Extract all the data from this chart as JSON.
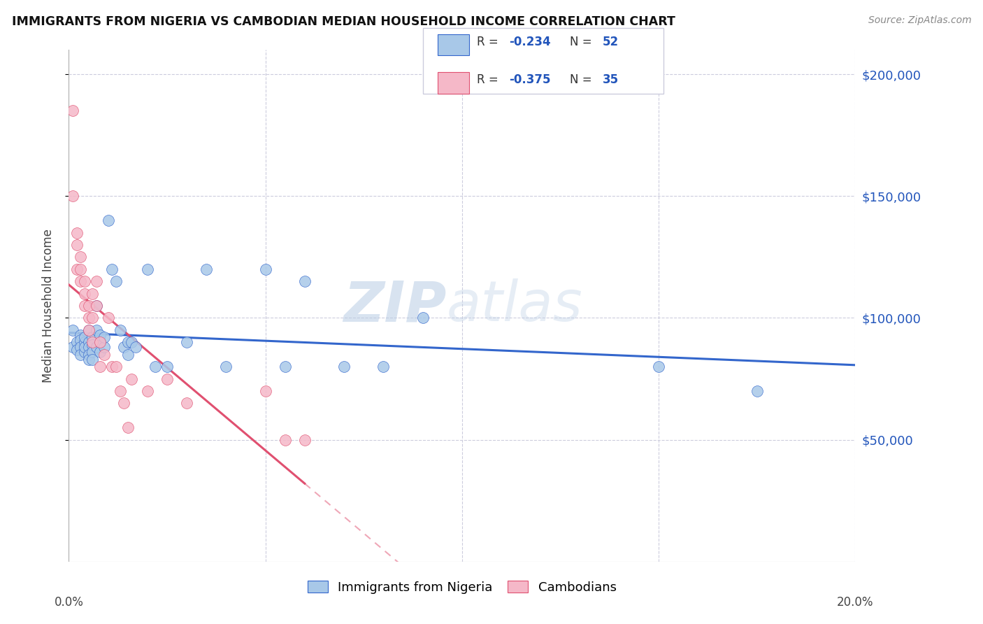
{
  "title": "IMMIGRANTS FROM NIGERIA VS CAMBODIAN MEDIAN HOUSEHOLD INCOME CORRELATION CHART",
  "source": "Source: ZipAtlas.com",
  "ylabel": "Median Household Income",
  "legend_label1": "Immigrants from Nigeria",
  "legend_label2": "Cambodians",
  "color_nigeria": "#a8c8e8",
  "color_cambodia": "#f5b8c8",
  "color_nigeria_line": "#3366cc",
  "color_cambodia_line": "#e05070",
  "color_text_blue": "#2255bb",
  "xmin": 0.0,
  "xmax": 0.2,
  "ymin": 0,
  "ymax": 210000,
  "nigeria_x": [
    0.001,
    0.001,
    0.002,
    0.002,
    0.003,
    0.003,
    0.003,
    0.003,
    0.004,
    0.004,
    0.004,
    0.004,
    0.005,
    0.005,
    0.005,
    0.005,
    0.005,
    0.006,
    0.006,
    0.006,
    0.006,
    0.007,
    0.007,
    0.007,
    0.008,
    0.008,
    0.008,
    0.009,
    0.009,
    0.01,
    0.011,
    0.012,
    0.013,
    0.014,
    0.015,
    0.015,
    0.016,
    0.017,
    0.02,
    0.022,
    0.025,
    0.03,
    0.035,
    0.04,
    0.05,
    0.055,
    0.06,
    0.07,
    0.08,
    0.09,
    0.15,
    0.175
  ],
  "nigeria_y": [
    95000,
    88000,
    90000,
    87000,
    93000,
    91000,
    88000,
    85000,
    90000,
    92000,
    86000,
    88000,
    95000,
    90000,
    88000,
    85000,
    83000,
    92000,
    89000,
    86000,
    83000,
    95000,
    105000,
    88000,
    90000,
    86000,
    93000,
    88000,
    92000,
    140000,
    120000,
    115000,
    95000,
    88000,
    90000,
    85000,
    90000,
    88000,
    120000,
    80000,
    80000,
    90000,
    120000,
    80000,
    120000,
    80000,
    115000,
    80000,
    80000,
    100000,
    80000,
    70000
  ],
  "cambodia_x": [
    0.001,
    0.001,
    0.002,
    0.002,
    0.002,
    0.003,
    0.003,
    0.003,
    0.004,
    0.004,
    0.004,
    0.005,
    0.005,
    0.005,
    0.006,
    0.006,
    0.006,
    0.007,
    0.007,
    0.008,
    0.008,
    0.009,
    0.01,
    0.011,
    0.012,
    0.013,
    0.014,
    0.015,
    0.016,
    0.02,
    0.025,
    0.03,
    0.05,
    0.055,
    0.06
  ],
  "cambodia_y": [
    185000,
    150000,
    135000,
    120000,
    130000,
    125000,
    120000,
    115000,
    110000,
    115000,
    105000,
    100000,
    105000,
    95000,
    110000,
    100000,
    90000,
    115000,
    105000,
    90000,
    80000,
    85000,
    100000,
    80000,
    80000,
    70000,
    65000,
    55000,
    75000,
    70000,
    75000,
    65000,
    70000,
    50000,
    50000
  ]
}
